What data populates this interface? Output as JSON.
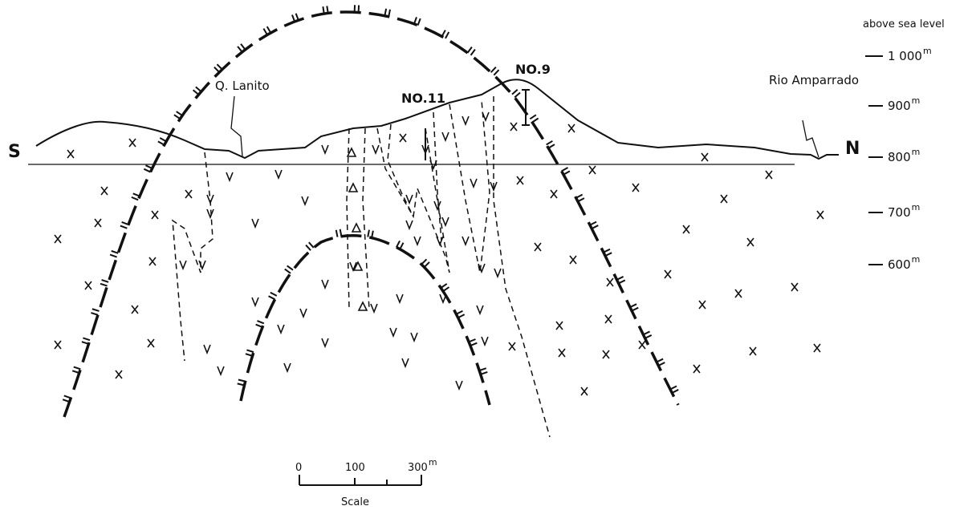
{
  "section": {
    "left_end": "S",
    "right_end": "N"
  },
  "labels": {
    "q_lanito": "Q. Lanito",
    "no11": "NO.11",
    "no9": "NO.9",
    "rio": "Rio Amparrado"
  },
  "elevation_scale": {
    "title": "above sea level",
    "ticks": [
      {
        "label": "1 000",
        "unit": "m"
      },
      {
        "label": "900",
        "unit": "m"
      },
      {
        "label": "800",
        "unit": "m"
      },
      {
        "label": "700",
        "unit": "m"
      },
      {
        "label": "600",
        "unit": "m"
      }
    ]
  },
  "scale_bar": {
    "ticks": [
      "0",
      "100",
      "300"
    ],
    "unit": "m",
    "title": "Scale"
  }
}
